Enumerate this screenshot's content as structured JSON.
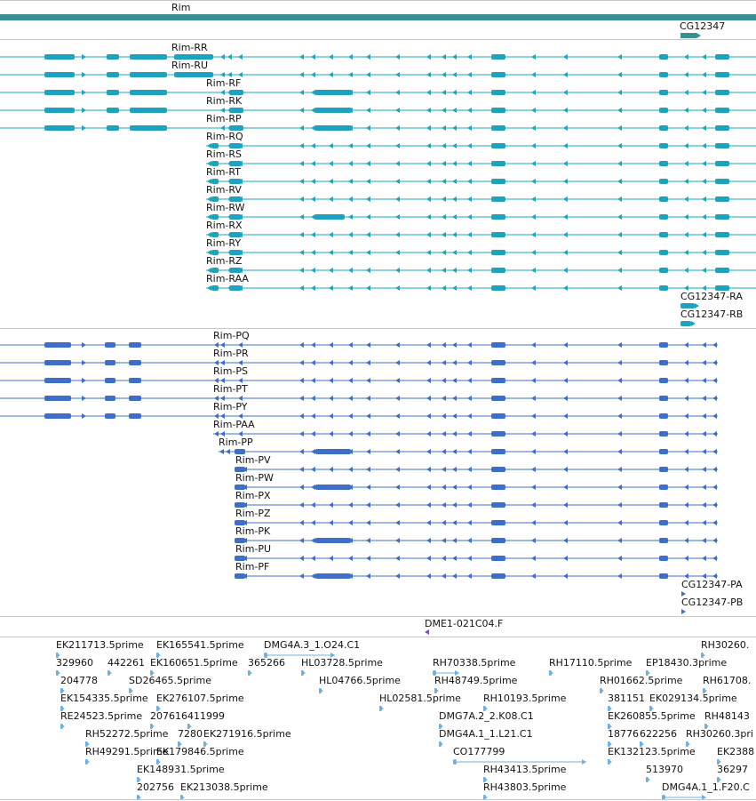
{
  "colors": {
    "gene_bar": "#3a8f93",
    "flybase_transcript": "#1ea3bf",
    "refseq_transcript": "#3e6fc7",
    "est": "#6fb0de",
    "insertion": "#7a52b8",
    "separator": "#c8c8c8"
  },
  "gene_track": {
    "gene_labels": [
      "Rim",
      "CG12347"
    ]
  },
  "flybase_track": {
    "transcripts": [
      "Rim-RR",
      "Rim-RU",
      "Rim-RF",
      "Rim-RK",
      "Rim-RP",
      "Rim-RQ",
      "Rim-RS",
      "Rim-RT",
      "Rim-RV",
      "Rim-RW",
      "Rim-RX",
      "Rim-RY",
      "Rim-RZ",
      "Rim-RAA"
    ],
    "neighbor_transcripts": [
      "CG12347-RA",
      "CG12347-RB"
    ]
  },
  "refseq_track": {
    "transcripts": [
      "Rim-PQ",
      "Rim-PR",
      "Rim-PS",
      "Rim-PT",
      "Rim-PY",
      "Rim-PAA",
      "Rim-PP",
      "Rim-PV",
      "Rim-PW",
      "Rim-PX",
      "Rim-PZ",
      "Rim-PK",
      "Rim-PU",
      "Rim-PF"
    ],
    "neighbor_transcripts": [
      "CG12347-PA",
      "CG12347-PB"
    ]
  },
  "insertion_track": {
    "labels": [
      "DME1-021C04.F"
    ]
  },
  "est_track": {
    "labels": [
      "EK211713.5prime",
      "EK165541.5prime",
      "DMG4A.3_1.O24.C1",
      "RH30260.",
      "329960",
      "442261",
      "EK160651.5prime",
      "365266",
      "HL03728.5prime",
      "RH70338.5prime",
      "RH17110.5prime",
      "EP18430.3prime",
      "204778",
      "SD26465.5prime",
      "HL04766.5prime",
      "RH48749.5prime",
      "RH01662.5prime",
      "RH61708.",
      "EK154335.5prime",
      "EK276107.5prime",
      "HL02581.5prime",
      "RH10193.5prime",
      "381151",
      "EK029134.5prime",
      "RE24523.5prime",
      "207616",
      "411999",
      "DMG7A.2_2.K08.C1",
      "EK260855.5prime",
      "RH48143",
      "RH52272.5prime",
      "7280",
      "EK271916.5prime",
      "DMG4A.1_1.L21.C1",
      "18776",
      "622256",
      "RH30260.3pri",
      "RH49291.5prime",
      "EK179846.5prime",
      "CO177799",
      "EK132123.5prime",
      "EK2388",
      "EK148931.5prime",
      "RH43413.5prime",
      "513970",
      "36297",
      "202756",
      "EK213038.5prime",
      "RH43803.5prime",
      "DMG4A.1_1.F20.C"
    ]
  }
}
